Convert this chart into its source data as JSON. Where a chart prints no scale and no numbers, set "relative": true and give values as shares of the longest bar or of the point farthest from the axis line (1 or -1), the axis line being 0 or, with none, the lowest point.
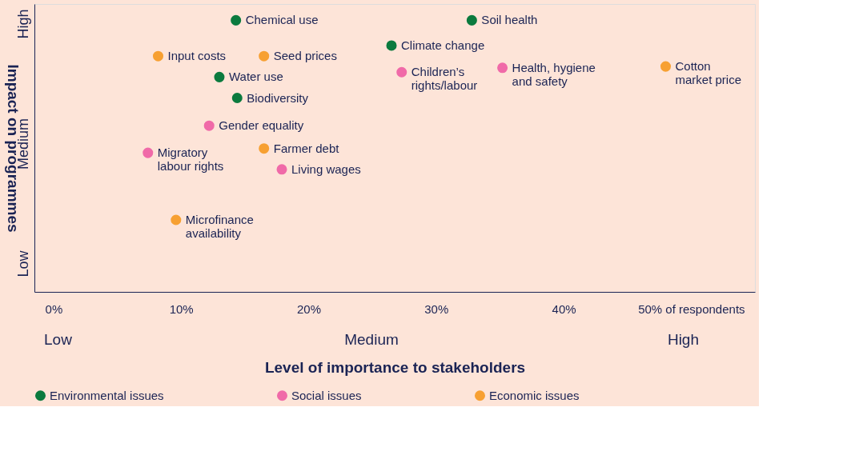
{
  "chart_data": {
    "type": "scatter",
    "xlabel": "Level of importance to stakeholders",
    "ylabel": "Impact on programmes",
    "xlim": [
      -1.5,
      55
    ],
    "relative": true,
    "xticks": [
      {
        "value": 0,
        "label": "0%"
      },
      {
        "value": 10,
        "label": "10%"
      },
      {
        "value": 20,
        "label": "20%"
      },
      {
        "value": 30,
        "label": "30%"
      },
      {
        "value": 40,
        "label": "40%"
      },
      {
        "value": 50,
        "label": "50% of respondents"
      }
    ],
    "grid": false,
    "legend": "bottom",
    "marker": "circle",
    "series": [
      {
        "name": "Environmental issues",
        "color": "#0b7a3e",
        "x": [
          14.3,
          32.8,
          26.5,
          13.0,
          14.4
        ],
        "values": [
          1,
          1,
          0.907,
          0.791,
          0.714
        ]
      },
      {
        "name": "Social issues",
        "color": "#f06aa8",
        "x": [
          27.3,
          35.2,
          12.2,
          7.4,
          17.9
        ],
        "values": [
          0.809,
          0.825,
          0.612,
          0.512,
          0.451
        ]
      },
      {
        "name": "Economic issues",
        "color": "#f7a032",
        "x": [
          8.2,
          16.5,
          48.0,
          16.5,
          9.6
        ],
        "values": [
          0.868,
          0.868,
          0.83,
          0.528,
          0.265
        ]
      }
    ],
    "annotations": [
      {
        "text": "Chemical use",
        "x": 14.3,
        "y": 1
      },
      {
        "text": "Soil health",
        "x": 32.8,
        "y": 1
      },
      {
        "text": "Climate change",
        "x": 26.5,
        "y": 0.907
      },
      {
        "text": "Water use",
        "x": 13.0,
        "y": 0.791
      },
      {
        "text": "Biodiversity",
        "x": 14.4,
        "y": 0.714
      },
      {
        "text": "Children’s\nrights/labour",
        "x": 27.3,
        "y": 0.809
      },
      {
        "text": "Health, hygiene\nand safety",
        "x": 35.2,
        "y": 0.825
      },
      {
        "text": "Gender equality",
        "x": 12.2,
        "y": 0.612
      },
      {
        "text": "Migratory\nlabour rights",
        "x": 7.4,
        "y": 0.512
      },
      {
        "text": "Living wages",
        "x": 17.9,
        "y": 0.451
      },
      {
        "text": "Input costs",
        "x": 8.2,
        "y": 0.868
      },
      {
        "text": "Seed prices",
        "x": 16.5,
        "y": 0.868
      },
      {
        "text": "Cotton\nmarket price",
        "x": 48.0,
        "y": 0.83
      },
      {
        "text": "Farmer debt",
        "x": 16.5,
        "y": 0.528
      },
      {
        "text": "Microfinance\navailability",
        "x": 9.6,
        "y": 0.265
      },
      "High",
      "Medium",
      "Low",
      "Low",
      "Medium",
      "High"
    ]
  }
}
